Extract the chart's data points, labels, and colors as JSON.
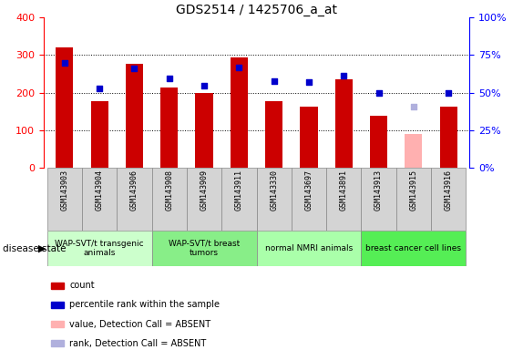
{
  "title": "GDS2514 / 1425706_a_at",
  "samples": [
    "GSM143903",
    "GSM143904",
    "GSM143906",
    "GSM143908",
    "GSM143909",
    "GSM143911",
    "GSM143330",
    "GSM143697",
    "GSM143891",
    "GSM143913",
    "GSM143915",
    "GSM143916"
  ],
  "count_values": [
    320,
    178,
    278,
    215,
    200,
    295,
    178,
    163,
    235,
    138,
    null,
    163
  ],
  "count_absent": [
    null,
    null,
    null,
    null,
    null,
    null,
    null,
    null,
    null,
    null,
    90,
    null
  ],
  "rank_values": [
    280,
    212,
    265,
    238,
    220,
    268,
    232,
    228,
    245,
    200,
    null,
    200
  ],
  "rank_absent": [
    null,
    null,
    null,
    null,
    null,
    null,
    null,
    null,
    null,
    null,
    163,
    null
  ],
  "bar_color": "#cc0000",
  "bar_absent_color": "#ffb0b0",
  "rank_color": "#0000cc",
  "rank_absent_color": "#b0b0dd",
  "left_ylim": [
    0,
    400
  ],
  "left_yticks": [
    0,
    100,
    200,
    300,
    400
  ],
  "right_yticklabels": [
    "0%",
    "25%",
    "50%",
    "75%",
    "100%"
  ],
  "group_defs": [
    [
      0,
      3,
      "WAP-SVT/t transgenic\nanimals",
      "#ccffcc"
    ],
    [
      3,
      6,
      "WAP-SVT/t breast\ntumors",
      "#88ee88"
    ],
    [
      6,
      9,
      "normal NMRI animals",
      "#aaffaa"
    ],
    [
      9,
      12,
      "breast cancer cell lines",
      "#55ee55"
    ]
  ],
  "legend_items": [
    {
      "label": "count",
      "color": "#cc0000"
    },
    {
      "label": "percentile rank within the sample",
      "color": "#0000cc"
    },
    {
      "label": "value, Detection Call = ABSENT",
      "color": "#ffb0b0"
    },
    {
      "label": "rank, Detection Call = ABSENT",
      "color": "#b0b0dd"
    }
  ],
  "bar_width": 0.5
}
